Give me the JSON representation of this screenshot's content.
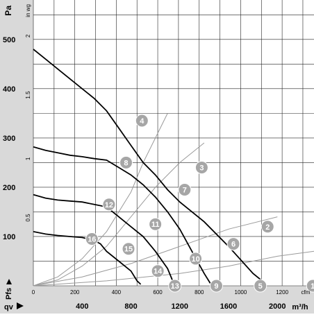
{
  "chart_data": {
    "type": "line",
    "y_unit_label": "Pa",
    "y_alt_unit_label": "in wg",
    "y_ticks": [
      100,
      200,
      300,
      400,
      500
    ],
    "y_ticks_inwg": [
      {
        "label": "0.5",
        "value": 0.5
      },
      {
        "label": "1",
        "value": 1
      },
      {
        "label": "1.5",
        "value": 1.5
      },
      {
        "label": "2",
        "value": 2
      }
    ],
    "ylim": [
      0,
      580
    ],
    "y_axis_symbol": "Pfs",
    "x_axis_symbol": "qv",
    "x_unit_m3h": "m³/h",
    "x_ticks_m3h": [
      400,
      800,
      1200,
      1600,
      2000
    ],
    "x_unit_cfm": "cfm",
    "x_ticks_cfm": [
      {
        "label": "0",
        "value": 0
      },
      {
        "label": "200",
        "value": 200
      },
      {
        "label": "400",
        "value": 400
      },
      {
        "label": "600",
        "value": 600
      },
      {
        "label": "800",
        "value": 800
      },
      {
        "label": "1000",
        "value": 1000
      },
      {
        "label": "1200",
        "value": 1200
      }
    ],
    "xlim_m3h": [
      0,
      2300
    ],
    "grid": true,
    "series": [
      {
        "name": "1",
        "values": [
          [
            0,
            480
          ],
          [
            100,
            460
          ],
          [
            200,
            440
          ],
          [
            300,
            420
          ],
          [
            400,
            400
          ],
          [
            500,
            380
          ],
          [
            600,
            355
          ],
          [
            700,
            320
          ],
          [
            800,
            285
          ],
          [
            900,
            250
          ],
          [
            1000,
            225
          ],
          [
            1100,
            195
          ],
          [
            1200,
            170
          ],
          [
            1400,
            130
          ],
          [
            1600,
            80
          ],
          [
            1800,
            25
          ],
          [
            1900,
            5
          ]
        ]
      },
      {
        "name": "2",
        "values": [
          [
            0,
            282
          ],
          [
            100,
            275
          ],
          [
            200,
            270
          ],
          [
            300,
            265
          ],
          [
            400,
            262
          ],
          [
            500,
            258
          ],
          [
            600,
            255
          ],
          [
            700,
            240
          ],
          [
            800,
            225
          ],
          [
            900,
            205
          ],
          [
            1000,
            180
          ],
          [
            1100,
            150
          ],
          [
            1200,
            115
          ],
          [
            1300,
            70
          ],
          [
            1400,
            25
          ],
          [
            1450,
            5
          ]
        ]
      },
      {
        "name": "3",
        "values": [
          [
            0,
            185
          ],
          [
            100,
            178
          ],
          [
            200,
            174
          ],
          [
            300,
            172
          ],
          [
            400,
            170
          ],
          [
            500,
            165
          ],
          [
            600,
            160
          ],
          [
            700,
            140
          ],
          [
            800,
            120
          ],
          [
            900,
            100
          ],
          [
            1000,
            70
          ],
          [
            1100,
            35
          ],
          [
            1150,
            5
          ]
        ]
      },
      {
        "name": "4",
        "values": [
          [
            0,
            110
          ],
          [
            100,
            105
          ],
          [
            200,
            102
          ],
          [
            300,
            100
          ],
          [
            400,
            98
          ],
          [
            500,
            92
          ],
          [
            550,
            85
          ],
          [
            600,
            70
          ],
          [
            700,
            50
          ],
          [
            800,
            30
          ],
          [
            850,
            10
          ],
          [
            880,
            3
          ]
        ]
      }
    ],
    "point_labels": [
      {
        "label": "1",
        "x": 2290,
        "y": 0
      },
      {
        "label": "2",
        "x": 1920,
        "y": 120
      },
      {
        "label": "3",
        "x": 1380,
        "y": 240
      },
      {
        "label": "4",
        "x": 890,
        "y": 335
      },
      {
        "label": "5",
        "x": 1860,
        "y": 0
      },
      {
        "label": "6",
        "x": 1640,
        "y": 85
      },
      {
        "label": "7",
        "x": 1240,
        "y": 195
      },
      {
        "label": "8",
        "x": 760,
        "y": 250
      },
      {
        "label": "9",
        "x": 1500,
        "y": 0
      },
      {
        "label": "10",
        "x": 1330,
        "y": 55
      },
      {
        "label": "11",
        "x": 1000,
        "y": 125
      },
      {
        "label": "12",
        "x": 620,
        "y": 165
      },
      {
        "label": "13",
        "x": 1160,
        "y": 0
      },
      {
        "label": "14",
        "x": 1020,
        "y": 30
      },
      {
        "label": "15",
        "x": 780,
        "y": 75
      },
      {
        "label": "16",
        "x": 480,
        "y": 95
      }
    ],
    "system_curves": [
      [
        [
          0,
          0
        ],
        [
          200,
          18
        ],
        [
          400,
          55
        ],
        [
          600,
          110
        ],
        [
          800,
          190
        ],
        [
          900,
          250
        ],
        [
          1000,
          300
        ],
        [
          1100,
          350
        ]
      ],
      [
        [
          0,
          0
        ],
        [
          200,
          12
        ],
        [
          400,
          40
        ],
        [
          600,
          80
        ],
        [
          800,
          140
        ],
        [
          1000,
          200
        ],
        [
          1200,
          250
        ],
        [
          1400,
          290
        ]
      ],
      [
        [
          0,
          0
        ],
        [
          400,
          18
        ],
        [
          800,
          45
        ],
        [
          1200,
          80
        ],
        [
          1600,
          115
        ],
        [
          2000,
          140
        ]
      ],
      [
        [
          0,
          0
        ],
        [
          600,
          10
        ],
        [
          1200,
          25
        ],
        [
          1600,
          40
        ],
        [
          2000,
          60
        ],
        [
          2300,
          70
        ]
      ]
    ]
  }
}
